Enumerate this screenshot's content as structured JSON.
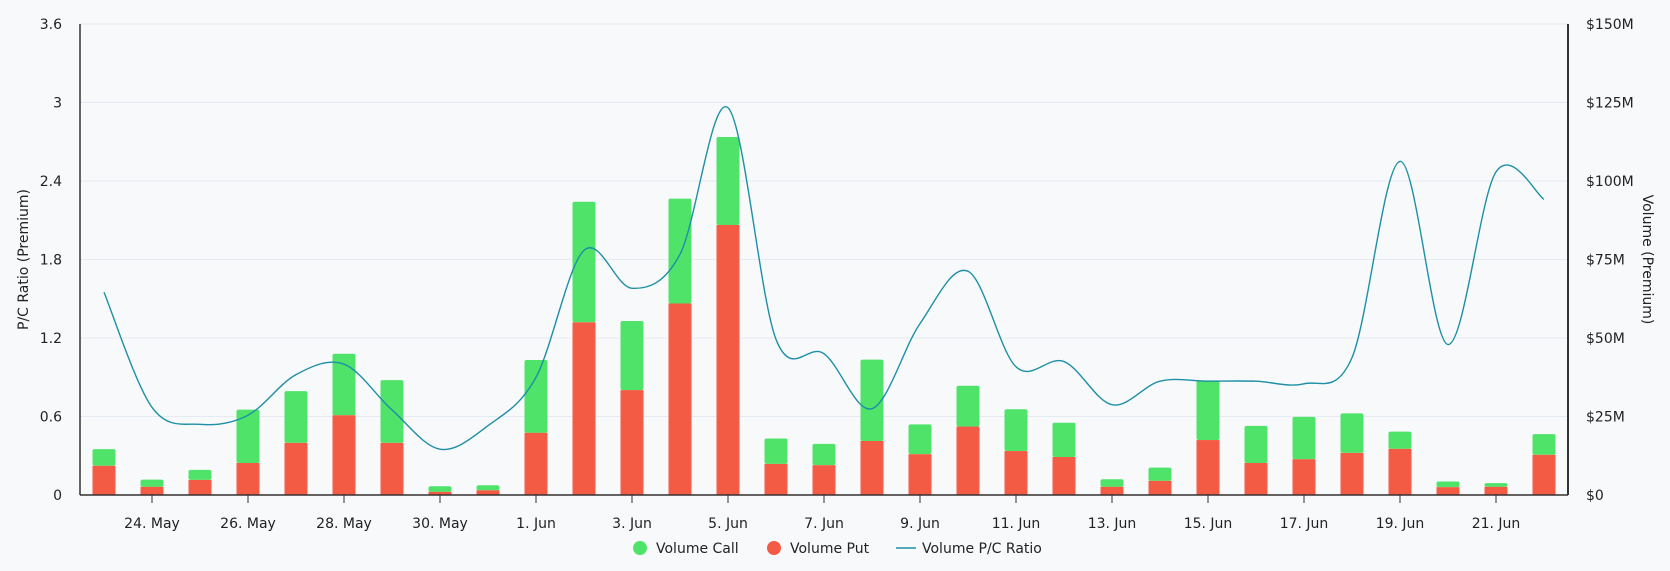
{
  "chart_data": {
    "type": "bar",
    "categories": [
      "23. May",
      "24. May",
      "25. May",
      "26. May",
      "27. May",
      "28. May",
      "29. May",
      "30. May",
      "31. May",
      "1. Jun",
      "2. Jun",
      "3. Jun",
      "4. Jun",
      "5. Jun",
      "6. Jun",
      "7. Jun",
      "8. Jun",
      "9. Jun",
      "10. Jun",
      "11. Jun",
      "12. Jun",
      "13. Jun",
      "14. Jun",
      "15. Jun",
      "16. Jun",
      "17. Jun",
      "18. Jun",
      "19. Jun",
      "20. Jun",
      "21. Jun",
      "22. Jun"
    ],
    "x_tick_labels": [
      "24. May",
      "26. May",
      "28. May",
      "30. May",
      "1. Jun",
      "3. Jun",
      "5. Jun",
      "7. Jun",
      "9. Jun",
      "11. Jun",
      "13. Jun",
      "15. Jun",
      "17. Jun",
      "19. Jun",
      "21. Jun"
    ],
    "series": [
      {
        "name": "Volume Call",
        "type": "bar",
        "axis": "right",
        "color": "#4fe36a",
        "values": [
          5.3,
          2.3,
          3.2,
          17.0,
          16.5,
          19.6,
          20.0,
          1.8,
          1.6,
          23.2,
          38.4,
          22.0,
          33.4,
          28.0,
          8.1,
          6.8,
          25.9,
          9.5,
          13.0,
          13.3,
          10.9,
          2.4,
          4.2,
          19.0,
          11.8,
          13.5,
          12.6,
          5.5,
          1.8,
          1.2,
          6.6
        ]
      },
      {
        "name": "Volume Put",
        "type": "bar",
        "axis": "right",
        "color": "#f45b45",
        "values": [
          9.3,
          2.6,
          4.8,
          10.2,
          16.6,
          25.4,
          16.6,
          1.0,
          1.5,
          19.8,
          55.0,
          33.4,
          61.0,
          86.0,
          9.9,
          9.5,
          17.2,
          13.0,
          21.8,
          14.0,
          12.1,
          2.6,
          4.5,
          17.5,
          10.2,
          11.4,
          13.4,
          14.7,
          2.5,
          2.6,
          12.8
        ]
      },
      {
        "name": "Volume P/C Ratio",
        "type": "line",
        "axis": "left",
        "color": "#1e8fa6",
        "values": [
          1.55,
          0.67,
          0.54,
          0.61,
          0.92,
          1.0,
          0.65,
          0.35,
          0.53,
          0.9,
          1.87,
          1.58,
          1.84,
          2.96,
          1.19,
          1.08,
          0.66,
          1.31,
          1.71,
          0.98,
          1.02,
          0.69,
          0.87,
          0.87,
          0.87,
          0.85,
          1.05,
          2.55,
          1.15,
          2.47,
          2.26
        ]
      }
    ],
    "y_left": {
      "label": "P/C Ratio (Premium)",
      "ylim": [
        0,
        3.6
      ],
      "ticks": [
        "0",
        "0.6",
        "1.2",
        "1.8",
        "2.4",
        "3",
        "3.6"
      ]
    },
    "y_right": {
      "label": "Volume (Premium)",
      "ylim": [
        0,
        150
      ],
      "unit": "$M",
      "ticks": [
        "$0",
        "$25M",
        "$50M",
        "$75M",
        "$100M",
        "$125M",
        "$150M"
      ]
    },
    "grid": true,
    "legend_position": "bottom-center"
  }
}
